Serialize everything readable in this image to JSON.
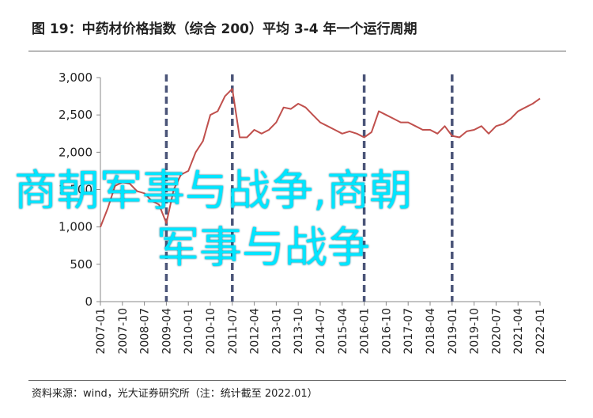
{
  "title": "图 19：中药材价格指数（综合 200）平均 3-4 年一个运行周期",
  "source": "资料来源：wind，光大证券研究所（注：统计截至 2022.01）",
  "watermark": {
    "line1": "商朝军事与战争,商朝",
    "line2": "军事与战争",
    "color": "#00e5ff"
  },
  "chart_data": {
    "type": "line",
    "title": "",
    "xlabel": "",
    "ylabel": "",
    "ylim": [
      0,
      3000
    ],
    "yticks": [
      0,
      500,
      1000,
      1500,
      2000,
      2500,
      3000
    ],
    "ytick_labels": [
      "0",
      "500",
      "1,000",
      "1,500",
      "2,000",
      "2,500",
      "3,000"
    ],
    "xtick_labels": [
      "2007-01",
      "2007-10",
      "2008-07",
      "2009-04",
      "2010-01",
      "2010-10",
      "2011-07",
      "2012-04",
      "2013-01",
      "2013-10",
      "2014-07",
      "2015-04",
      "2016-01",
      "2016-10",
      "2017-07",
      "2018-04",
      "2019-01",
      "2019-10",
      "2020-07",
      "2021-04",
      "2022-01"
    ],
    "line_color": "#c0504d",
    "cycle_markers": [
      "2009-04",
      "2011-07",
      "2016-01",
      "2019-01"
    ],
    "cycle_marker_color": "#4a5478",
    "series": [
      {
        "x": [
          "2007-01",
          "2007-04",
          "2007-07",
          "2007-10",
          "2008-01",
          "2008-04",
          "2008-07",
          "2008-10",
          "2009-01",
          "2009-04",
          "2009-07",
          "2009-10",
          "2010-01",
          "2010-04",
          "2010-07",
          "2010-10",
          "2011-01",
          "2011-04",
          "2011-07",
          "2011-10",
          "2012-01",
          "2012-04",
          "2012-07",
          "2012-10",
          "2013-01",
          "2013-04",
          "2013-07",
          "2013-10",
          "2014-01",
          "2014-04",
          "2014-07",
          "2014-10",
          "2015-01",
          "2015-04",
          "2015-07",
          "2015-10",
          "2016-01",
          "2016-04",
          "2016-07",
          "2016-10",
          "2017-01",
          "2017-04",
          "2017-07",
          "2017-10",
          "2018-01",
          "2018-04",
          "2018-07",
          "2018-10",
          "2019-01",
          "2019-04",
          "2019-07",
          "2019-10",
          "2020-01",
          "2020-04",
          "2020-07",
          "2020-10",
          "2021-01",
          "2021-04",
          "2021-07",
          "2021-10",
          "2022-01"
        ],
        "values": [
          1000,
          1250,
          1550,
          1600,
          1580,
          1480,
          1450,
          1350,
          1300,
          1050,
          1500,
          1700,
          1750,
          2000,
          2150,
          2500,
          2550,
          2750,
          2850,
          2200,
          2200,
          2300,
          2250,
          2300,
          2400,
          2600,
          2580,
          2650,
          2600,
          2500,
          2400,
          2350,
          2300,
          2250,
          2280,
          2250,
          2200,
          2270,
          2550,
          2500,
          2450,
          2400,
          2400,
          2350,
          2300,
          2300,
          2250,
          2350,
          2220,
          2200,
          2280,
          2300,
          2350,
          2250,
          2350,
          2380,
          2450,
          2550,
          2600,
          2650,
          2720
        ]
      }
    ]
  }
}
